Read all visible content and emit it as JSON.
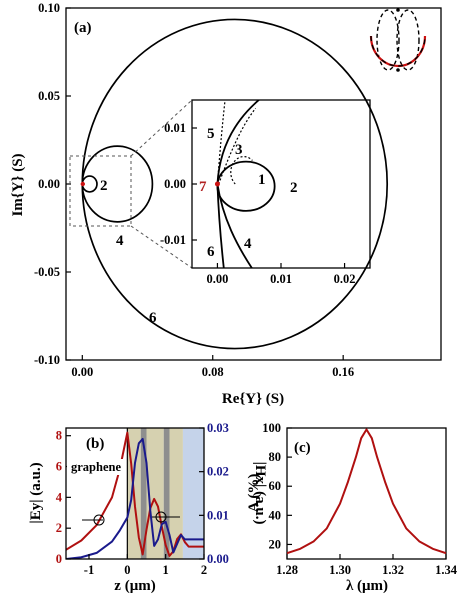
{
  "chart_data": [
    {
      "panel_label": "(a)",
      "type": "line",
      "xlabel": "Re{Y} (S)",
      "ylabel": "Im{Y} (S)",
      "xlim": [
        -0.01,
        0.22
      ],
      "ylim": [
        -0.1,
        0.1
      ],
      "xticks": [
        "0.00",
        "0.08",
        "0.16"
      ],
      "yticks": [
        "0.10",
        "0.05",
        "0.00",
        "-0.05",
        "-0.10"
      ],
      "grid": false,
      "annotations": [
        "2",
        "4",
        "6"
      ],
      "series": [
        {
          "label": "2",
          "shape": "circle",
          "center": [
            0.0045,
            0.0
          ],
          "radius": 0.0045
        },
        {
          "label": "4",
          "shape": "circle",
          "center": [
            0.0215,
            0.0
          ],
          "radius": 0.0215
        },
        {
          "label": "6",
          "shape": "circle",
          "center": [
            0.0935,
            0.0
          ],
          "radius": 0.0935
        }
      ],
      "inset": {
        "xlim": [
          -0.004,
          0.024
        ],
        "ylim": [
          -0.015,
          0.015
        ],
        "xticks": [
          "0.00",
          "0.01",
          "0.02"
        ],
        "yticks": [
          "0.01",
          "0.00",
          "-0.01"
        ],
        "annotations": [
          "1",
          "2",
          "3",
          "4",
          "5",
          "6",
          "7"
        ],
        "annotation_colors": {
          "7": "#b22222"
        }
      },
      "inset_icon": {
        "dashed_color": "#000000",
        "solid_color": "#cc1111"
      }
    },
    {
      "panel_label": "(b)",
      "type": "line",
      "xlabel": "z (μm)",
      "ylabel_left": "|Ey| (a.u.)",
      "ylabel_right": "|Hx| (a.u.)",
      "xlim": [
        -1.6,
        2.0
      ],
      "ylim_left": [
        0,
        8.5
      ],
      "ylim_right": [
        0,
        0.03
      ],
      "xticks": [
        "-1",
        "0",
        "1",
        "2"
      ],
      "yticks_left": [
        "0",
        "2",
        "4",
        "6",
        "8"
      ],
      "yticks_right": [
        "0.00",
        "0.01",
        "0.02",
        "0.03"
      ],
      "annotations": [
        "graphene"
      ],
      "layer_colors": {
        "light": "#d6d1b0",
        "dark": "#8e8e8e",
        "blue": "#c5d3ea"
      },
      "series": [
        {
          "axis": "left",
          "color": "#b01010",
          "x": [
            -1.6,
            -1.2,
            -0.8,
            -0.4,
            -0.2,
            0.0,
            0.1,
            0.2,
            0.3,
            0.4,
            0.5,
            0.6,
            0.7,
            0.8,
            0.9,
            1.0,
            1.1,
            1.2,
            1.3,
            1.4,
            1.5,
            1.6,
            2.0
          ],
          "y": [
            0.6,
            1.2,
            2.2,
            4.0,
            5.8,
            8.2,
            6.2,
            3.4,
            1.4,
            0.3,
            1.9,
            3.3,
            3.9,
            3.4,
            2.1,
            0.9,
            0.2,
            0.5,
            1.3,
            1.6,
            1.1,
            0.8,
            0.8
          ]
        },
        {
          "axis": "right",
          "color": "#1a1a8c",
          "x": [
            -1.6,
            -1.2,
            -0.8,
            -0.4,
            -0.2,
            0.0,
            0.1,
            0.2,
            0.3,
            0.4,
            0.5,
            0.6,
            0.7,
            0.8,
            0.9,
            1.0,
            1.1,
            1.2,
            1.3,
            1.4,
            1.5,
            2.0
          ],
          "y": [
            0.0,
            0.0004,
            0.0014,
            0.004,
            0.0065,
            0.0095,
            0.0135,
            0.022,
            0.0265,
            0.0275,
            0.022,
            0.011,
            0.003,
            0.0045,
            0.008,
            0.0085,
            0.0055,
            0.0015,
            0.0035,
            0.0055,
            0.0045,
            0.0045
          ]
        }
      ]
    },
    {
      "panel_label": "(c)",
      "type": "line",
      "xlabel": "λ (μm)",
      "ylabel": "A (%)",
      "xlim": [
        1.28,
        1.34
      ],
      "ylim": [
        10,
        100
      ],
      "xticks": [
        "1.28",
        "1.30",
        "1.32",
        "1.34"
      ],
      "yticks": [
        "20",
        "40",
        "60",
        "80",
        "100"
      ],
      "series": [
        {
          "color": "#b01010",
          "x": [
            1.28,
            1.285,
            1.29,
            1.295,
            1.3,
            1.303,
            1.306,
            1.308,
            1.31,
            1.312,
            1.314,
            1.317,
            1.32,
            1.325,
            1.33,
            1.335,
            1.34
          ],
          "y": [
            14,
            17,
            22,
            31,
            48,
            63,
            80,
            93,
            99,
            93,
            80,
            63,
            48,
            31,
            22,
            17,
            14
          ]
        }
      ]
    }
  ]
}
